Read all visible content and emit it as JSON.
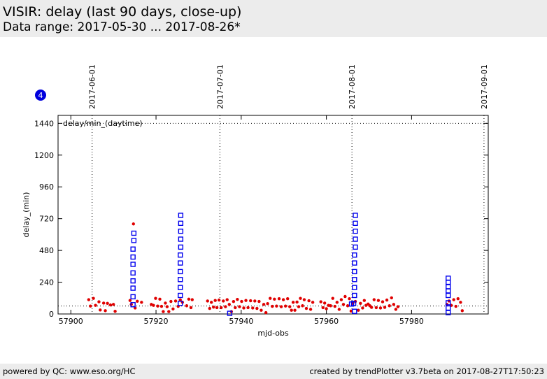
{
  "header": {
    "title": "VISIR: delay (last 90 days, close-up)",
    "subtitle": "Data range: 2017-05-30 ... 2017-08-26*"
  },
  "footer": {
    "left": "powered by QC: www.eso.org/HC",
    "right": "created by trendPlotter v3.7beta on 2017-08-27T17:50:23"
  },
  "badge": "4",
  "colors": {
    "red": "#e00000",
    "blue": "#0000ee",
    "badge": "#0000dd"
  },
  "chart_data": {
    "type": "scatter",
    "xlabel": "mjd-obs",
    "ylabel": "delay_(min)",
    "inner_label": "delay/min_(daytime)",
    "xlim": [
      57897,
      57998
    ],
    "ylim": [
      0,
      1500
    ],
    "xticks": [
      57900,
      57920,
      57940,
      57960,
      57980
    ],
    "yticks": [
      0,
      240,
      480,
      720,
      960,
      1200,
      1440
    ],
    "hline": 1440,
    "baseline": 60,
    "date_markers": [
      {
        "x": 57905,
        "label": "2017-06-01"
      },
      {
        "x": 57935,
        "label": "2017-07-01"
      },
      {
        "x": 57966,
        "label": "2017-08-01"
      },
      {
        "x": 57997,
        "label": "2017-09-01"
      }
    ],
    "series": [
      {
        "marker": "dot",
        "points": [
          [
            57904.2,
            108
          ],
          [
            57904.6,
            60
          ],
          [
            57905.3,
            118
          ],
          [
            57905.8,
            65
          ],
          [
            57906.6,
            92
          ],
          [
            57906.9,
            30
          ],
          [
            57907.7,
            82
          ],
          [
            57908.1,
            25
          ],
          [
            57908.6,
            80
          ],
          [
            57909.3,
            68
          ],
          [
            57910.0,
            72
          ],
          [
            57910.4,
            20
          ],
          [
            57913.9,
            102
          ],
          [
            57914.2,
            72
          ],
          [
            57914.7,
            680
          ],
          [
            57915.1,
            45
          ],
          [
            57915.6,
            96
          ],
          [
            57916.6,
            88
          ],
          [
            57918.9,
            72
          ],
          [
            57919.4,
            65
          ],
          [
            57919.9,
            118
          ],
          [
            57920.4,
            60
          ],
          [
            57920.9,
            112
          ],
          [
            57921.3,
            58
          ],
          [
            57921.7,
            18
          ],
          [
            57922.2,
            82
          ],
          [
            57922.6,
            55
          ],
          [
            57923.0,
            18
          ],
          [
            57923.5,
            95
          ],
          [
            57924.0,
            38
          ],
          [
            57924.6,
            98
          ],
          [
            57925.2,
            58
          ],
          [
            57925.7,
            106
          ],
          [
            57926.2,
            88
          ],
          [
            57927.2,
            62
          ],
          [
            57927.7,
            112
          ],
          [
            57928.2,
            48
          ],
          [
            57928.5,
            108
          ],
          [
            57932.1,
            98
          ],
          [
            57932.6,
            42
          ],
          [
            57933.0,
            88
          ],
          [
            57933.5,
            52
          ],
          [
            57933.9,
            102
          ],
          [
            57934.3,
            48
          ],
          [
            57934.8,
            105
          ],
          [
            57935.3,
            48
          ],
          [
            57935.8,
            98
          ],
          [
            57936.3,
            55
          ],
          [
            57936.7,
            108
          ],
          [
            57937.2,
            72
          ],
          [
            57937.7,
            18
          ],
          [
            57938.2,
            94
          ],
          [
            57938.6,
            48
          ],
          [
            57939.1,
            110
          ],
          [
            57939.6,
            55
          ],
          [
            57940.1,
            95
          ],
          [
            57940.6,
            45
          ],
          [
            57941.1,
            102
          ],
          [
            57941.6,
            48
          ],
          [
            57942.2,
            100
          ],
          [
            57942.7,
            45
          ],
          [
            57943.2,
            98
          ],
          [
            57943.7,
            42
          ],
          [
            57944.2,
            95
          ],
          [
            57944.7,
            28
          ],
          [
            57945.3,
            72
          ],
          [
            57945.8,
            10
          ],
          [
            57946.2,
            78
          ],
          [
            57946.8,
            118
          ],
          [
            57947.3,
            58
          ],
          [
            57947.8,
            112
          ],
          [
            57948.3,
            60
          ],
          [
            57948.9,
            115
          ],
          [
            57949.4,
            55
          ],
          [
            57949.9,
            108
          ],
          [
            57950.4,
            60
          ],
          [
            57950.9,
            115
          ],
          [
            57951.4,
            55
          ],
          [
            57951.8,
            28
          ],
          [
            57952.2,
            88
          ],
          [
            57952.6,
            28
          ],
          [
            57953.1,
            90
          ],
          [
            57953.5,
            55
          ],
          [
            57953.9,
            118
          ],
          [
            57954.4,
            62
          ],
          [
            57954.8,
            108
          ],
          [
            57955.3,
            42
          ],
          [
            57955.9,
            100
          ],
          [
            57956.3,
            35
          ],
          [
            57956.8,
            88
          ],
          [
            57958.7,
            92
          ],
          [
            57959.2,
            48
          ],
          [
            57959.6,
            82
          ],
          [
            57960.0,
            40
          ],
          [
            57960.5,
            65
          ],
          [
            57961.0,
            62
          ],
          [
            57961.5,
            118
          ],
          [
            57962.0,
            58
          ],
          [
            57962.5,
            88
          ],
          [
            57963.0,
            35
          ],
          [
            57963.5,
            108
          ],
          [
            57964.0,
            72
          ],
          [
            57964.4,
            132
          ],
          [
            57965.0,
            62
          ],
          [
            57965.4,
            115
          ],
          [
            57965.8,
            22
          ],
          [
            57966.2,
            80
          ],
          [
            57966.8,
            95
          ],
          [
            57967.5,
            28
          ],
          [
            57968.0,
            80
          ],
          [
            57968.5,
            45
          ],
          [
            57968.9,
            102
          ],
          [
            57969.3,
            65
          ],
          [
            57969.8,
            75
          ],
          [
            57970.2,
            62
          ],
          [
            57970.6,
            50
          ],
          [
            57971.2,
            108
          ],
          [
            57971.7,
            48
          ],
          [
            57972.2,
            102
          ],
          [
            57972.7,
            45
          ],
          [
            57973.2,
            92
          ],
          [
            57973.7,
            50
          ],
          [
            57974.2,
            105
          ],
          [
            57974.8,
            62
          ],
          [
            57975.3,
            122
          ],
          [
            57975.8,
            72
          ],
          [
            57976.3,
            35
          ],
          [
            57976.8,
            55
          ],
          [
            57988.3,
            72
          ],
          [
            57988.8,
            98
          ],
          [
            57989.3,
            65
          ],
          [
            57989.9,
            108
          ],
          [
            57990.4,
            58
          ],
          [
            57990.9,
            115
          ],
          [
            57991.5,
            88
          ],
          [
            57991.9,
            25
          ]
        ]
      },
      {
        "marker": "square",
        "points": [
          [
            57914.6,
            70
          ],
          [
            57914.6,
            130
          ],
          [
            57914.6,
            195
          ],
          [
            57914.6,
            250
          ],
          [
            57914.6,
            310
          ],
          [
            57914.6,
            375
          ],
          [
            57914.6,
            430
          ],
          [
            57914.6,
            490
          ],
          [
            57914.8,
            555
          ],
          [
            57914.8,
            610
          ],
          [
            57925.7,
            80
          ],
          [
            57925.7,
            140
          ],
          [
            57925.7,
            200
          ],
          [
            57925.7,
            260
          ],
          [
            57925.7,
            320
          ],
          [
            57925.7,
            385
          ],
          [
            57925.7,
            445
          ],
          [
            57925.8,
            505
          ],
          [
            57925.8,
            565
          ],
          [
            57925.8,
            625
          ],
          [
            57925.8,
            685
          ],
          [
            57925.8,
            745
          ],
          [
            57937.3,
            5
          ],
          [
            57965.9,
            75
          ],
          [
            57966.4,
            80
          ],
          [
            57966.6,
            20
          ],
          [
            57966.6,
            140
          ],
          [
            57966.6,
            200
          ],
          [
            57966.6,
            260
          ],
          [
            57966.6,
            320
          ],
          [
            57966.6,
            385
          ],
          [
            57966.6,
            445
          ],
          [
            57966.8,
            505
          ],
          [
            57966.8,
            565
          ],
          [
            57966.8,
            625
          ],
          [
            57966.8,
            685
          ],
          [
            57966.8,
            745
          ],
          [
            57988.6,
            10
          ],
          [
            57988.6,
            45
          ],
          [
            57988.6,
            85
          ],
          [
            57988.6,
            140
          ],
          [
            57988.6,
            175
          ],
          [
            57988.6,
            205
          ],
          [
            57988.6,
            240
          ],
          [
            57988.6,
            270
          ]
        ]
      }
    ]
  }
}
